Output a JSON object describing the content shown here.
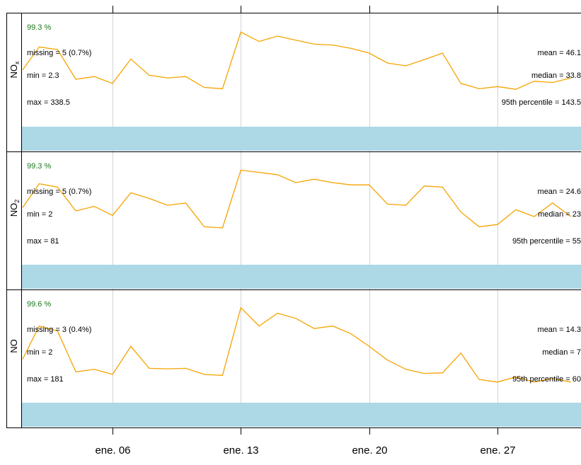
{
  "chart_data": {
    "type": "line",
    "x_ticks": [
      "ene. 06",
      "ene. 13",
      "ene. 20",
      "ene. 27"
    ],
    "x_tick_days": [
      6,
      13,
      20,
      27
    ],
    "xlim": [
      1,
      31
    ],
    "colors": {
      "line": "#f5a300",
      "bar": "#add8e6",
      "percent": "#1a7a1a",
      "grid": "#d3d3d3",
      "frame": "#000000"
    },
    "panels": [
      {
        "label": "NOx",
        "label_main": "NO",
        "label_sub": "x",
        "ylim": [
          0,
          380
        ],
        "percent": "99.3 %",
        "stats_left": [
          "missing = 5 (0.7%)",
          "min = 2.3",
          "max = 338.5"
        ],
        "stats_right": [
          "mean = 46.1",
          "median = 33.8",
          "95th percentile = 143.5"
        ],
        "series": {
          "x": [
            1,
            2,
            3,
            4,
            5,
            6,
            7,
            8,
            9,
            10,
            11,
            12,
            13,
            14,
            15,
            16,
            17,
            18,
            19,
            20,
            21,
            22,
            23,
            24,
            25,
            26,
            27,
            28,
            29,
            30,
            31
          ],
          "y": [
            200,
            285,
            275,
            165,
            175,
            150,
            240,
            180,
            170,
            175,
            135,
            130,
            340,
            305,
            325,
            310,
            295,
            292,
            280,
            262,
            225,
            215,
            238,
            262,
            150,
            130,
            138,
            128,
            158,
            153,
            170
          ]
        }
      },
      {
        "label": "NO2",
        "label_main": "NO",
        "label_sub": "2",
        "ylim": [
          0,
          90
        ],
        "percent": "99.3 %",
        "stats_left": [
          "missing = 5 (0.7%)",
          "min = 2",
          "max = 81"
        ],
        "stats_right": [
          "mean = 24.6",
          "median = 23",
          "95th percentile = 55"
        ],
        "series": {
          "x": [
            1,
            2,
            3,
            4,
            5,
            6,
            7,
            8,
            9,
            10,
            11,
            12,
            13,
            14,
            15,
            16,
            17,
            18,
            19,
            20,
            21,
            22,
            23,
            24,
            25,
            26,
            27,
            28,
            29,
            30,
            31
          ],
          "y": [
            48,
            69,
            66,
            45,
            49,
            41,
            61,
            56,
            50,
            52,
            31,
            30,
            81,
            79,
            77,
            70,
            73,
            70,
            68,
            68,
            51,
            50,
            67,
            66,
            44,
            31,
            33,
            46,
            40,
            52,
            40
          ]
        }
      },
      {
        "label": "NO",
        "label_main": "NO",
        "label_sub": "",
        "ylim": [
          0,
          200
        ],
        "percent": "99.6 %",
        "stats_left": [
          "missing = 3 (0.4%)",
          "min = 2",
          "max = 181"
        ],
        "stats_right": [
          "mean = 14.3",
          "median = 7",
          "95th percentile = 60"
        ],
        "series": {
          "x": [
            1,
            2,
            3,
            4,
            5,
            6,
            7,
            8,
            9,
            10,
            11,
            12,
            13,
            14,
            15,
            16,
            17,
            18,
            19,
            20,
            21,
            22,
            23,
            24,
            25,
            26,
            27,
            28,
            29,
            30,
            31
          ],
          "y": [
            80,
            145,
            135,
            55,
            60,
            50,
            105,
            62,
            61,
            62,
            50,
            48,
            181,
            145,
            170,
            160,
            140,
            145,
            130,
            105,
            78,
            60,
            52,
            53,
            92,
            40,
            35,
            45,
            35,
            42,
            35
          ]
        }
      }
    ]
  }
}
